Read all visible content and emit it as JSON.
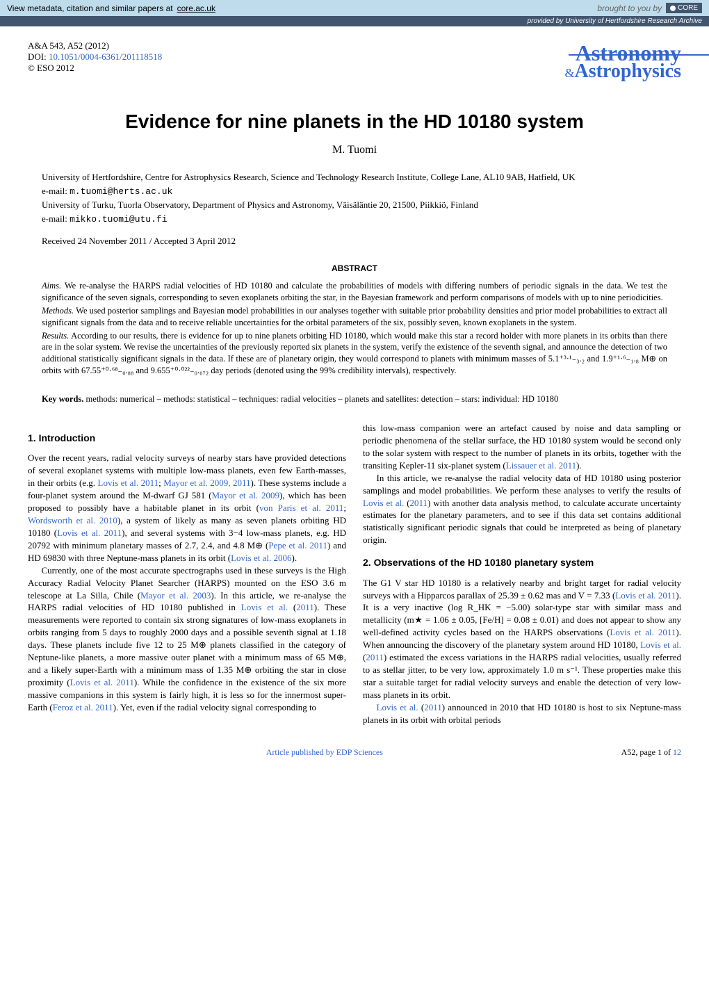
{
  "topbar": {
    "left_text": "View metadata, citation and similar papers at",
    "left_link": "core.ac.uk",
    "core_label": "CORE",
    "right_prefix": "brought to you by",
    "right_text": "provided by University of Hertfordshire Research Archive"
  },
  "header": {
    "journal_ref": "A&A 543, A52 (2012)",
    "doi_label": "DOI:",
    "doi": "10.1051/0004-6361/201118518",
    "copyright": "© ESO 2012",
    "logo_top": "Astronomy",
    "logo_amp": "&",
    "logo_bot": "Astrophysics"
  },
  "title": "Evidence for nine planets in the HD 10180 system",
  "author": "M. Tuomi",
  "affiliations": {
    "a1": "University of Hertfordshire, Centre for Astrophysics Research, Science and Technology Research Institute, College Lane, AL10 9AB, Hatfield, UK",
    "a1_email_label": "e-mail:",
    "a1_email": "m.tuomi@herts.ac.uk",
    "a2": "University of Turku, Tuorla Observatory, Department of Physics and Astronomy, Väisäläntie 20, 21500, Piikkiö, Finland",
    "a2_email_label": "e-mail:",
    "a2_email": "mikko.tuomi@utu.fi"
  },
  "received": "Received 24 November 2011 / Accepted 3 April 2012",
  "abstract": {
    "heading": "ABSTRACT",
    "aims_label": "Aims.",
    "aims": "We re-analyse the HARPS radial velocities of HD 10180 and calculate the probabilities of models with differing numbers of periodic signals in the data. We test the significance of the seven signals, corresponding to seven exoplanets orbiting the star, in the Bayesian framework and perform comparisons of models with up to nine periodicities.",
    "methods_label": "Methods.",
    "methods": "We used posterior samplings and Bayesian model probabilities in our analyses together with suitable prior probability densities and prior model probabilities to extract all significant signals from the data and to receive reliable uncertainties for the orbital parameters of the six, possibly seven, known exoplanets in the system.",
    "results_label": "Results.",
    "results": "According to our results, there is evidence for up to nine planets orbiting HD 10180, which would make this star a record holder with more planets in its orbits than there are in the solar system. We revise the uncertainties of the previously reported six planets in the system, verify the existence of the seventh signal, and announce the detection of two additional statistically significant signals in the data. If these are of planetary origin, they would correspond to planets with minimum masses of 5.1⁺³·¹₋₃.₂ and 1.9⁺¹·⁶₋₁.₈ M⊕ on orbits with 67.55⁺⁰·⁶⁸₋₀.₈₈ and 9.655⁺⁰·⁰²²₋₀.₀₇₂ day periods (denoted using the 99% credibility intervals), respectively."
  },
  "keywords": {
    "label": "Key words.",
    "text": "methods: numerical – methods: statistical – techniques: radial velocities – planets and satellites: detection – stars: individual: HD 10180"
  },
  "sections": {
    "s1_head": "1. Introduction",
    "s1_p1a": "Over the recent years, radial velocity surveys of nearby stars have provided detections of several exoplanet systems with multiple low-mass planets, even few Earth-masses, in their orbits (e.g. ",
    "s1_r1": "Lovis et al. 2011",
    "s1_p1b": "; ",
    "s1_r2": "Mayor et al. 2009, 2011",
    "s1_p1c": "). These systems include a four-planet system around the M-dwarf GJ 581 (",
    "s1_r3": "Mayor et al. 2009",
    "s1_p1d": "), which has been proposed to possibly have a habitable planet in its orbit (",
    "s1_r4": "von Paris et al. 2011",
    "s1_p1e": "; ",
    "s1_r5": "Wordsworth et al. 2010",
    "s1_p1f": "), a system of likely as many as seven planets orbiting HD 10180 (",
    "s1_r6": "Lovis et al. 2011",
    "s1_p1g": "), and several systems with 3−4 low-mass planets, e.g. HD 20792 with minimum planetary masses of 2.7, 2.4, and 4.8 M⊕ (",
    "s1_r7": "Pepe et al. 2011",
    "s1_p1h": ") and HD 69830 with three Neptune-mass planets in its orbit (",
    "s1_r8": "Lovis et al. 2006",
    "s1_p1i": ").",
    "s1_p2a": "Currently, one of the most accurate spectrographs used in these surveys is the High Accuracy Radial Velocity Planet Searcher (HARPS) mounted on the ESO 3.6 m telescope at La Silla, Chile (",
    "s1_r9": "Mayor et al. 2003",
    "s1_p2b": "). In this article, we re-analyse the HARPS radial velocities of HD 10180 published in ",
    "s1_r10": "Lovis et al.",
    "s1_p2c": " (",
    "s1_r11": "2011",
    "s1_p2d": "). These measurements were reported to contain six strong signatures of low-mass exoplanets in orbits ranging from 5 days to roughly 2000 days and a possible seventh signal at 1.18 days. These planets include five 12 to 25 M⊕ planets classified in the category of Neptune-like planets, a more massive outer planet with a minimum mass of 65 M⊕, and a likely super-Earth with a minimum mass of 1.35 M⊕ orbiting the star in close proximity (",
    "s1_r12": "Lovis et al. 2011",
    "s1_p2e": "). While the confidence in the existence of the six more massive companions in this system is fairly high, it is less so for the innermost super-Earth (",
    "s1_r13": "Feroz et al. 2011",
    "s1_p2f": "). Yet, even if the radial velocity signal corresponding to",
    "col2_p1a": "this low-mass companion were an artefact caused by noise and data sampling or periodic phenomena of the stellar surface, the HD 10180 system would be second only to the solar system with respect to the number of planets in its orbits, together with the transiting Kepler-11 six-planet system (",
    "col2_r1": "Lissauer et al. 2011",
    "col2_p1b": ").",
    "col2_p2a": "In this article, we re-analyse the radial velocity data of HD 10180 using posterior samplings and model probabilities. We perform these analyses to verify the results of ",
    "col2_r2": "Lovis et al.",
    "col2_p2b": " (",
    "col2_r3": "2011",
    "col2_p2c": ") with another data analysis method, to calculate accurate uncertainty estimates for the planetary parameters, and to see if this data set contains additional statistically significant periodic signals that could be interpreted as being of planetary origin.",
    "s2_head": "2. Observations of the HD 10180 planetary system",
    "s2_p1a": "The G1 V star HD 10180 is a relatively nearby and bright target for radial velocity surveys with a Hipparcos parallax of 25.39 ± 0.62 mas and V = 7.33 (",
    "s2_r1": "Lovis et al. 2011",
    "s2_p1b": "). It is a very inactive (log R_HK = −5.00) solar-type star with similar mass and metallicity (m★ = 1.06 ± 0.05, [Fe/H] = 0.08 ± 0.01) and does not appear to show any well-defined activity cycles based on the HARPS observations (",
    "s2_r2": "Lovis et al. 2011",
    "s2_p1c": "). When announcing the discovery of the planetary system around HD 10180, ",
    "s2_r3": "Lovis et al.",
    "s2_p1d": " (",
    "s2_r4": "2011",
    "s2_p1e": ") estimated the excess variations in the HARPS radial velocities, usually referred to as stellar jitter, to be very low, approximately 1.0 m s⁻¹. These properties make this star a suitable target for radial velocity surveys and enable the detection of very low-mass planets in its orbit.",
    "s2_p2a": "",
    "s2_r5": "Lovis et al.",
    "s2_p2b": " (",
    "s2_r6": "2011",
    "s2_p2c": ") announced in 2010 that HD 10180 is host to six Neptune-mass planets in its orbit with orbital periods"
  },
  "footer": {
    "link": "Article published by EDP Sciences",
    "page": "A52, page 1 of",
    "page_link": "12"
  }
}
